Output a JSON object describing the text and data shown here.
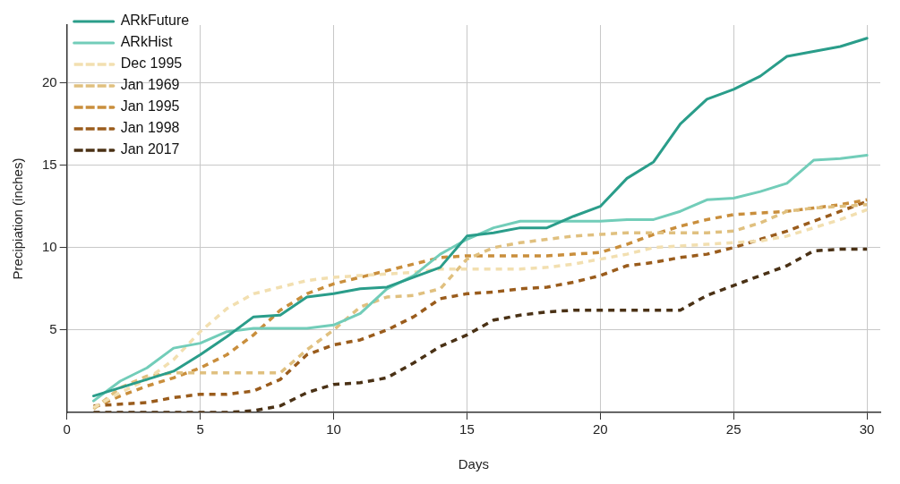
{
  "chart_data": {
    "type": "line",
    "xlabel": "Days",
    "ylabel": "Precipiation (inches)",
    "x": [
      1,
      2,
      3,
      4,
      5,
      6,
      7,
      8,
      9,
      10,
      11,
      12,
      13,
      14,
      15,
      16,
      17,
      18,
      19,
      20,
      21,
      22,
      23,
      24,
      25,
      26,
      27,
      28,
      29,
      30
    ],
    "xlim": [
      0,
      30.5
    ],
    "xticks": [
      0,
      5,
      10,
      15,
      20,
      25,
      30
    ],
    "ylim": [
      0,
      23.5
    ],
    "yticks": [
      5,
      10,
      15,
      20
    ],
    "grid": true,
    "legend": "top left",
    "marker": "none",
    "series": [
      {
        "name": "ARkFuture",
        "color": "#2a9d8a",
        "line_style": "solid",
        "values": [
          1.0,
          1.5,
          2.0,
          2.5,
          3.5,
          4.6,
          5.8,
          5.9,
          7.0,
          7.2,
          7.5,
          7.6,
          8.2,
          8.8,
          10.7,
          10.9,
          11.2,
          11.2,
          11.9,
          12.5,
          14.2,
          15.2,
          17.5,
          19.0,
          19.6,
          20.4,
          21.6,
          21.9,
          22.2,
          22.7
        ]
      },
      {
        "name": "ARkHist",
        "color": "#72cdb9",
        "line_style": "solid",
        "values": [
          0.7,
          1.9,
          2.7,
          3.9,
          4.2,
          4.9,
          5.1,
          5.1,
          5.1,
          5.3,
          6.0,
          7.5,
          8.3,
          9.6,
          10.5,
          11.2,
          11.6,
          11.6,
          11.6,
          11.6,
          11.7,
          11.7,
          12.2,
          12.9,
          13.0,
          13.4,
          13.9,
          15.3,
          15.4,
          15.6
        ]
      },
      {
        "name": "Dec 1995",
        "color": "#f2dfb0",
        "line_style": "dashed",
        "values": [
          0.3,
          1.2,
          2.0,
          3.2,
          4.9,
          6.3,
          7.2,
          7.6,
          8.0,
          8.2,
          8.3,
          8.4,
          8.5,
          8.7,
          8.7,
          8.7,
          8.7,
          8.8,
          9.0,
          9.3,
          9.6,
          10.0,
          10.1,
          10.2,
          10.3,
          10.4,
          10.7,
          11.2,
          11.7,
          12.3
        ]
      },
      {
        "name": "Jan 1969",
        "color": "#e0c07f",
        "line_style": "dashed",
        "values": [
          0.2,
          1.5,
          2.2,
          2.4,
          2.4,
          2.4,
          2.4,
          2.4,
          3.8,
          5.0,
          6.4,
          7.0,
          7.1,
          7.5,
          9.3,
          10.0,
          10.3,
          10.5,
          10.7,
          10.8,
          10.9,
          10.9,
          10.9,
          10.9,
          11.0,
          11.5,
          12.2,
          12.4,
          12.5,
          12.6
        ]
      },
      {
        "name": "Jan 1995",
        "color": "#c98e3c",
        "line_style": "dashed",
        "values": [
          0.3,
          1.0,
          1.6,
          2.1,
          2.7,
          3.5,
          4.7,
          6.2,
          7.2,
          7.8,
          8.2,
          8.6,
          9.0,
          9.4,
          9.5,
          9.5,
          9.5,
          9.5,
          9.6,
          9.7,
          10.2,
          10.8,
          11.3,
          11.7,
          12.0,
          12.1,
          12.2,
          12.4,
          12.6,
          12.9
        ]
      },
      {
        "name": "Jan 1998",
        "color": "#9a5c1c",
        "line_style": "dashed",
        "values": [
          0.4,
          0.5,
          0.6,
          0.9,
          1.1,
          1.1,
          1.3,
          2.0,
          3.5,
          4.1,
          4.4,
          5.0,
          5.8,
          6.9,
          7.2,
          7.3,
          7.5,
          7.6,
          7.9,
          8.3,
          8.9,
          9.1,
          9.4,
          9.6,
          10.0,
          10.5,
          11.0,
          11.6,
          12.2,
          12.8
        ]
      },
      {
        "name": "Jan 2017",
        "color": "#4a3115",
        "line_style": "dashed",
        "values": [
          0,
          0,
          0,
          0,
          0,
          0,
          0.1,
          0.4,
          1.2,
          1.7,
          1.8,
          2.1,
          3.0,
          4.0,
          4.7,
          5.6,
          5.9,
          6.1,
          6.2,
          6.2,
          6.2,
          6.2,
          6.2,
          7.1,
          7.7,
          8.3,
          8.9,
          9.8,
          9.9,
          9.9
        ]
      }
    ]
  }
}
